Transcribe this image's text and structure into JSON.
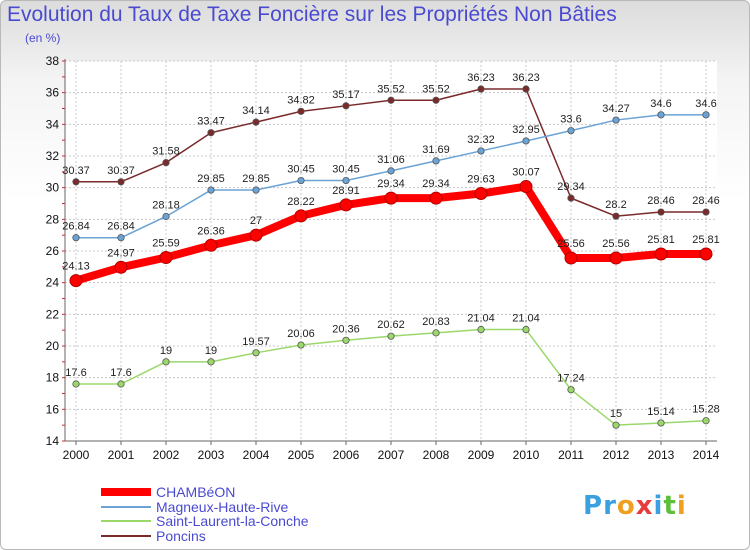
{
  "header": {
    "title": "Evolution du Taux de Taxe Foncière sur les Propriétés Non Bâties",
    "subtitle": "(en %)"
  },
  "chart_data": {
    "type": "line",
    "title": "Evolution du Taux de Taxe Foncière sur les Propriétés Non Bâties",
    "ylabel": "(en %)",
    "xlabel": "",
    "ylim": [
      14,
      38
    ],
    "yticks": [
      14,
      16,
      18,
      20,
      22,
      24,
      26,
      28,
      30,
      32,
      34,
      36,
      38
    ],
    "x": [
      "2000",
      "2001",
      "2002",
      "2003",
      "2004",
      "2005",
      "2006",
      "2007",
      "2008",
      "2009",
      "2010",
      "2011",
      "2012",
      "2013",
      "2014"
    ],
    "grid": true,
    "legend_position": "bottom-left",
    "series": [
      {
        "name": "CHAMBéON",
        "color": "#ff0000",
        "values": [
          24.13,
          24.97,
          25.59,
          26.36,
          27,
          28.22,
          28.91,
          29.34,
          29.34,
          29.63,
          30.07,
          25.56,
          25.56,
          25.81,
          25.81
        ],
        "labels": [
          "24.13",
          "24.97",
          "25.59",
          "26.36",
          "27",
          "28.22",
          "28.91",
          "29.34",
          "29.34",
          "29.63",
          "30.07",
          "25.56",
          "25.56",
          "25.81",
          "25.81"
        ]
      },
      {
        "name": "Magneux-Haute-Rive",
        "color": "#6ba3d6",
        "values": [
          26.84,
          26.84,
          28.18,
          29.85,
          29.85,
          30.45,
          30.45,
          31.06,
          31.69,
          32.32,
          32.95,
          33.6,
          34.27,
          34.6,
          34.6
        ],
        "labels": [
          "26.84",
          "26.84",
          "28.18",
          "29.85",
          "29.85",
          "30.45",
          "30.45",
          "31.06",
          "31.69",
          "32.32",
          "32.95",
          "33.6",
          "34.27",
          "34.6",
          "34.6"
        ]
      },
      {
        "name": "Saint-Laurent-la-Conche",
        "color": "#9bd86a",
        "values": [
          17.6,
          17.6,
          19,
          19,
          19.57,
          20.06,
          20.36,
          20.62,
          20.83,
          21.04,
          21.04,
          17.24,
          15,
          15.14,
          15.28
        ],
        "labels": [
          "17.6",
          "17.6",
          "19",
          "19",
          "19.57",
          "20.06",
          "20.36",
          "20.62",
          "20.83",
          "21.04",
          "21.04",
          "17.24",
          "15",
          "15.14",
          "15.28"
        ]
      },
      {
        "name": "Poncins",
        "color": "#7a2a2a",
        "values": [
          30.37,
          30.37,
          31.58,
          33.47,
          34.14,
          34.82,
          35.17,
          35.52,
          35.52,
          36.23,
          36.23,
          29.34,
          28.2,
          28.46,
          28.46
        ],
        "labels": [
          "30.37",
          "30.37",
          "31.58",
          "33.47",
          "34.14",
          "34.82",
          "35.17",
          "35.52",
          "35.52",
          "36.23",
          "36.23",
          "29.34",
          "28.2",
          "28.46",
          "28.46"
        ]
      }
    ]
  },
  "legend": {
    "items": [
      {
        "label": "CHAMBéON",
        "color": "#ff0000"
      },
      {
        "label": "Magneux-Haute-Rive",
        "color": "#6ba3d6"
      },
      {
        "label": "Saint-Laurent-la-Conche",
        "color": "#9bd86a"
      },
      {
        "label": "Poncins",
        "color": "#7a2a2a"
      }
    ]
  },
  "logo": {
    "letters": [
      "P",
      "r",
      "o",
      "x",
      "i",
      "t",
      "i"
    ],
    "colors": [
      "#3aa0e0",
      "#3aa0e0",
      "#f0a020",
      "#e63c3c",
      "#3aa0e0",
      "#5bbf3a",
      "#f0a020"
    ]
  }
}
